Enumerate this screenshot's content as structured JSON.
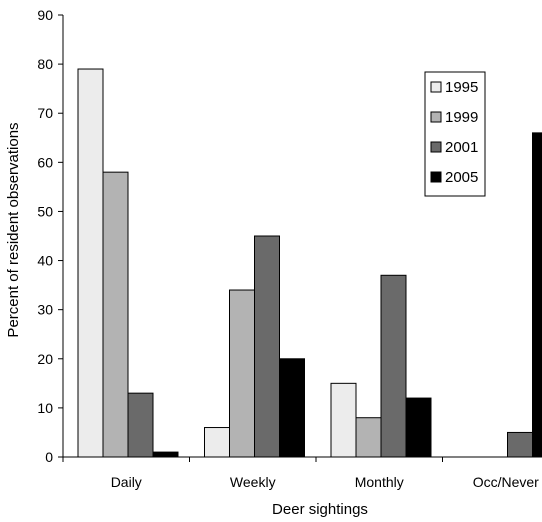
{
  "chart_data": {
    "type": "bar",
    "title": "",
    "xlabel": "Deer sightings",
    "ylabel": "Percent of resident observations",
    "categories": [
      "Daily",
      "Weekly",
      "Monthly",
      "Occ/Never"
    ],
    "ylim": [
      0,
      90
    ],
    "yticks": [
      0,
      10,
      20,
      30,
      40,
      50,
      60,
      70,
      80,
      90
    ],
    "grid": false,
    "legend_position": "top-right",
    "series": [
      {
        "name": "1995",
        "color": "#ececec",
        "values": [
          79,
          6,
          15,
          0
        ]
      },
      {
        "name": "1999",
        "color": "#b3b3b3",
        "values": [
          58,
          34,
          8,
          0
        ]
      },
      {
        "name": "2001",
        "color": "#6a6a6a",
        "values": [
          13,
          45,
          37,
          5
        ]
      },
      {
        "name": "2005",
        "color": "#000000",
        "values": [
          1,
          20,
          12,
          66
        ]
      }
    ]
  }
}
